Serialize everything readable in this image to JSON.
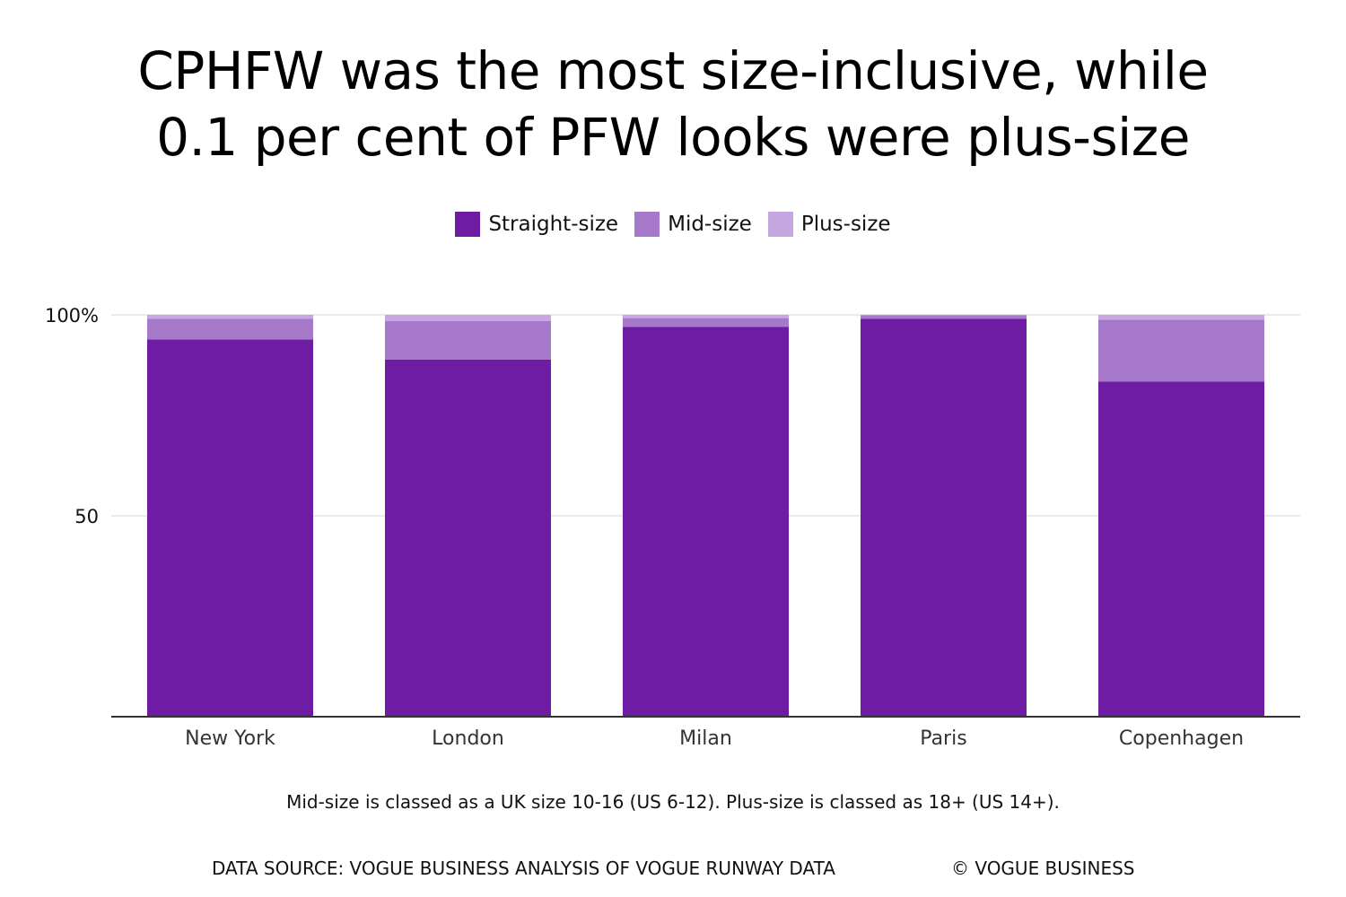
{
  "title_lines": [
    "CPHFW was the most size-inclusive, while",
    "0.1 per cent of PFW looks were plus-size"
  ],
  "note": "Mid-size is classed as a UK size 10-16 (US 6-12). Plus-size is classed as 18+ (US 14+).",
  "source": "DATA SOURCE: VOGUE BUSINESS ANALYSIS OF VOGUE RUNWAY DATA",
  "copyright": "© VOGUE BUSINESS",
  "colors": {
    "straight": "#6f1ca5",
    "mid": "#a678c9",
    "plus": "#c7a7e2",
    "grid": "#e4e4e4",
    "axis": "#333333"
  },
  "chart_data": {
    "type": "bar",
    "stacked": true,
    "title": "CPHFW was the most size-inclusive, while 0.1 per cent of PFW looks were plus-size",
    "categories": [
      "New York",
      "London",
      "Milan",
      "Paris",
      "Copenhagen"
    ],
    "series": [
      {
        "name": "Straight-size",
        "values": [
          93.9,
          88.9,
          97.0,
          99.0,
          83.4
        ]
      },
      {
        "name": "Mid-size",
        "values": [
          5.1,
          9.6,
          2.2,
          0.9,
          15.4
        ]
      },
      {
        "name": "Plus-size",
        "values": [
          1.0,
          1.5,
          0.8,
          0.1,
          1.2
        ]
      }
    ],
    "ylim": [
      0,
      100
    ],
    "yticks": [
      {
        "value": 50,
        "label": "50"
      },
      {
        "value": 100,
        "label": "100%"
      }
    ],
    "grid": true,
    "legend_position": "top-center",
    "xlabel": "",
    "ylabel": ""
  }
}
